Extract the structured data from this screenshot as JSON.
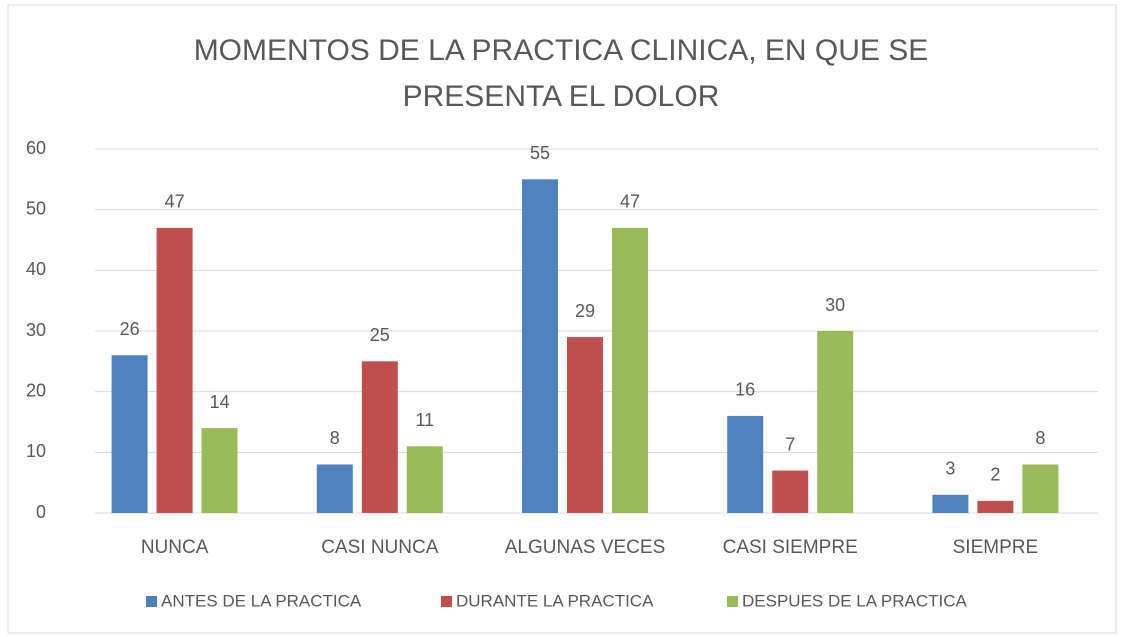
{
  "chart_data": {
    "type": "bar",
    "title": "MOMENTOS DE LA PRACTICA CLINICA, EN QUE SE PRESENTA EL DOLOR",
    "categories": [
      "NUNCA",
      "CASI NUNCA",
      "ALGUNAS VECES",
      "CASI SIEMPRE",
      "SIEMPRE"
    ],
    "series": [
      {
        "name": "ANTES DE LA PRACTICA",
        "color": "#4f81bd",
        "values": [
          26,
          8,
          55,
          16,
          3
        ]
      },
      {
        "name": "DURANTE LA PRACTICA",
        "color": "#c0504d",
        "values": [
          47,
          25,
          29,
          7,
          2
        ]
      },
      {
        "name": "DESPUES DE LA PRACTICA",
        "color": "#9bbb59",
        "values": [
          14,
          11,
          47,
          30,
          8
        ]
      }
    ],
    "ylim": [
      0,
      60
    ],
    "yticks": [
      0,
      10,
      20,
      30,
      40,
      50,
      60
    ],
    "grid": true,
    "legend": "bottom"
  }
}
